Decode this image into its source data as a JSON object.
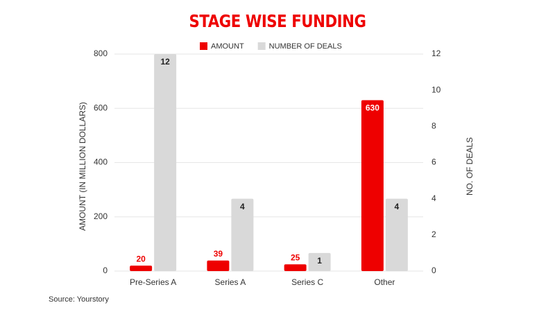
{
  "chart_data": {
    "type": "bar",
    "title": "STAGE WISE FUNDING",
    "categories": [
      "Pre-Series A",
      "Series A",
      "Series C",
      "Other"
    ],
    "series": [
      {
        "name": "AMOUNT",
        "color": "#ee0000",
        "values": [
          20,
          39,
          25,
          630
        ]
      },
      {
        "name": "NUMBER OF DEALS",
        "color": "#d9d9d9",
        "axis": "y2",
        "values": [
          12,
          4,
          1,
          4
        ]
      }
    ],
    "ylabel": "AMOUNT (IN MILLION DOLLARS)",
    "y2label": "NO. OF DEALS",
    "ylim": [
      0,
      800
    ],
    "yticks": [
      0,
      200,
      400,
      600,
      800
    ],
    "y2lim": [
      0,
      12
    ],
    "y2ticks": [
      0,
      2,
      4,
      6,
      8,
      10,
      12
    ],
    "grid": true,
    "legend": "top",
    "source": "Source: Yourstory"
  }
}
